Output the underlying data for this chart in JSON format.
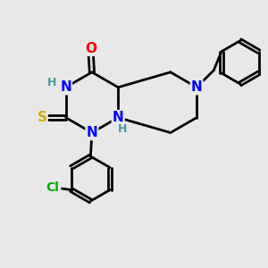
{
  "bg_color": "#e8e8e8",
  "bond_color": "#000000",
  "bond_width": 2.0,
  "atom_colors": {
    "N": "#0000ff",
    "O": "#ff0000",
    "S": "#ccaa00",
    "Cl": "#00aa00",
    "C": "#000000",
    "H": "#4a9a9a"
  },
  "font_size": 11
}
